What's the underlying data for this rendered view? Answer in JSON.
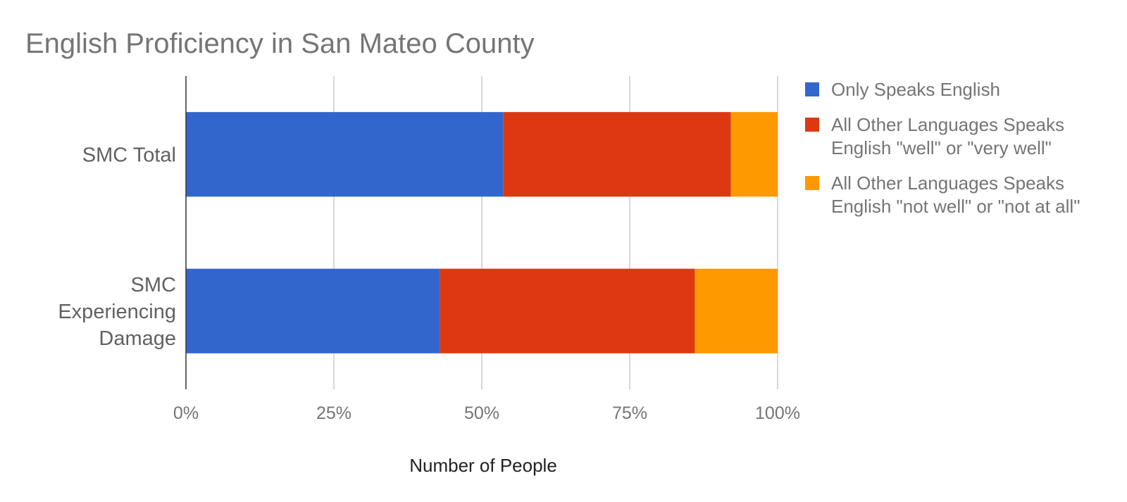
{
  "chart_data": {
    "type": "bar",
    "orientation": "horizontal",
    "stacked": "percent",
    "title": "English Proficiency in San Mateo County",
    "xlabel": "Number of People",
    "ylabel": "",
    "xlim": [
      0,
      100
    ],
    "x_ticks": [
      "0%",
      "25%",
      "50%",
      "75%",
      "100%"
    ],
    "grid": true,
    "legend_position": "right",
    "categories": [
      [
        "SMC Total"
      ],
      [
        "SMC",
        "Experiencing",
        "Damage"
      ]
    ],
    "series": [
      {
        "name": [
          "Only Speaks English"
        ],
        "color": "#3366cc",
        "values": [
          53.6,
          42.9
        ]
      },
      {
        "name": [
          "All Other Languages Speaks",
          "English \"well\" or \"very well\""
        ],
        "color": "#dc3912",
        "values": [
          38.5,
          43.1
        ]
      },
      {
        "name": [
          "All Other Languages Speaks",
          "English \"not well\" or \"not at all\""
        ],
        "color": "#ff9900",
        "values": [
          7.9,
          14.0
        ]
      }
    ]
  }
}
